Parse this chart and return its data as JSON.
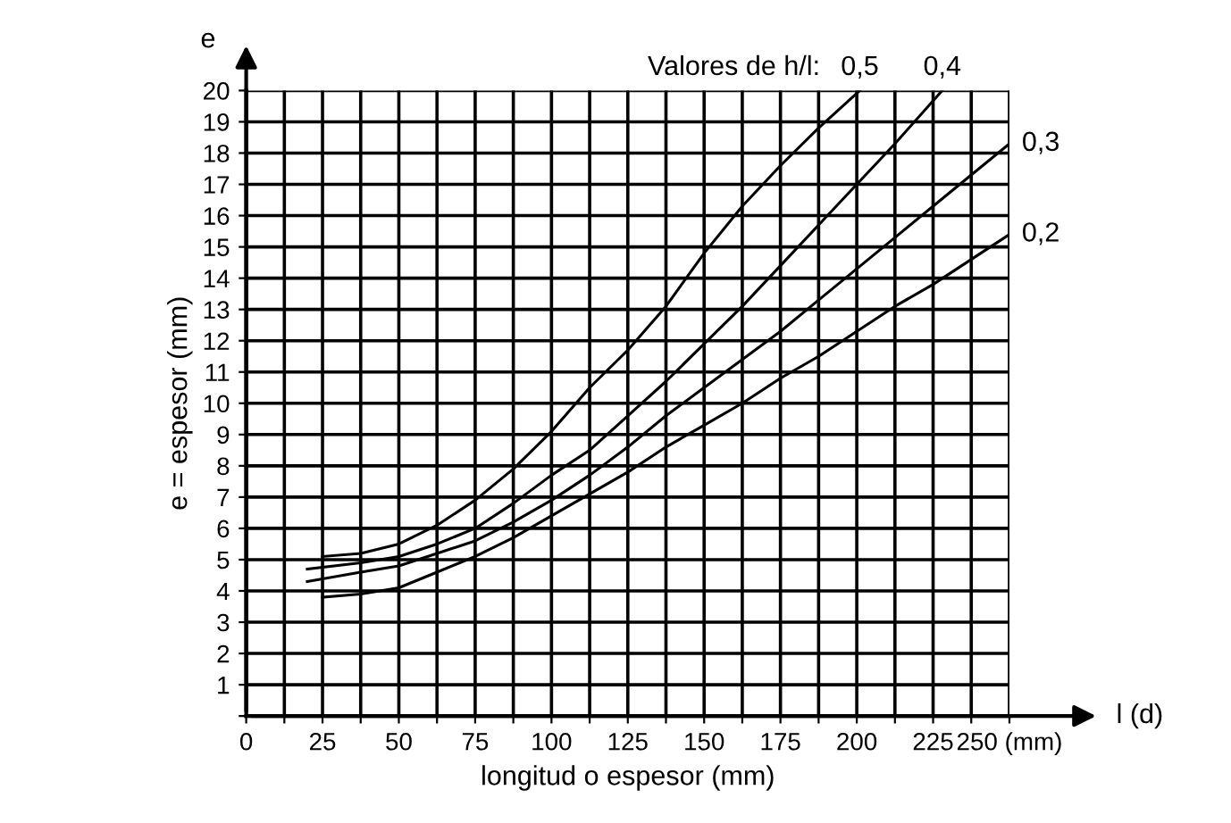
{
  "chart_data": {
    "type": "line",
    "xlabel": "longitud o espesor (mm)",
    "ylabel": "e = espesor (mm)",
    "legend_title": "Valores de h/l:",
    "annotations": [
      "e",
      "l (d)"
    ],
    "xlim": [
      0,
      250
    ],
    "ylim": [
      0,
      20
    ],
    "xticks": [
      0,
      {
        "value": 12.5,
        "label": null
      },
      25,
      {
        "value": 37.5,
        "label": null
      },
      50,
      {
        "value": 62.5,
        "label": null
      },
      75,
      {
        "value": 87.5,
        "label": null
      },
      100,
      {
        "value": 112.5,
        "label": null
      },
      125,
      {
        "value": 137.5,
        "label": null
      },
      150,
      {
        "value": 162.5,
        "label": null
      },
      175,
      {
        "value": 187.5,
        "label": null
      },
      200,
      {
        "value": 212.5,
        "label": null
      },
      225,
      {
        "value": 237.5,
        "label": null
      },
      {
        "value": 250,
        "label": "250 (mm)"
      }
    ],
    "yticks": [
      {
        "value": 0,
        "label": null
      },
      1,
      2,
      3,
      4,
      5,
      6,
      7,
      8,
      9,
      10,
      11,
      12,
      13,
      14,
      15,
      16,
      17,
      18,
      19,
      20
    ],
    "grid": true,
    "legend": false,
    "marker": "none",
    "line_style": "solid",
    "series": [
      {
        "name": "0,5",
        "color": "#000000",
        "x": [
          25,
          37.5,
          50,
          62.5,
          75,
          87.5,
          100,
          112.5,
          125,
          137.5,
          150,
          162.5,
          175,
          187.5,
          201
        ],
        "values": [
          5.1,
          5.2,
          5.5,
          6.1,
          6.9,
          7.9,
          9.1,
          10.5,
          11.7,
          13.1,
          14.8,
          16.3,
          17.6,
          18.8,
          20
        ]
      },
      {
        "name": "0,4",
        "color": "#000000",
        "x": [
          20,
          37.5,
          50,
          62.5,
          75,
          87.5,
          100,
          112.5,
          125,
          137.5,
          150,
          162.5,
          175,
          187.5,
          200,
          212.5,
          228
        ],
        "values": [
          4.7,
          4.9,
          5.1,
          5.5,
          6.0,
          6.8,
          7.7,
          8.5,
          9.6,
          10.7,
          11.9,
          13.1,
          14.4,
          15.7,
          17.0,
          18.3,
          20
        ]
      },
      {
        "name": "0,3",
        "color": "#000000",
        "x": [
          20,
          37.5,
          50,
          62.5,
          75,
          87.5,
          100,
          112.5,
          125,
          137.5,
          150,
          162.5,
          175,
          187.5,
          200,
          212.5,
          225,
          237.5,
          250
        ],
        "values": [
          4.3,
          4.6,
          4.8,
          5.2,
          5.6,
          6.2,
          6.9,
          7.7,
          8.6,
          9.6,
          10.5,
          11.4,
          12.3,
          13.3,
          14.3,
          15.3,
          16.3,
          17.3,
          18.3
        ]
      },
      {
        "name": "0,2",
        "color": "#000000",
        "x": [
          25,
          37.5,
          50,
          62.5,
          75,
          87.5,
          100,
          112.5,
          125,
          137.5,
          150,
          162.5,
          175,
          187.5,
          200,
          212.5,
          225,
          237.5,
          250
        ],
        "values": [
          3.8,
          3.9,
          4.1,
          4.6,
          5.1,
          5.7,
          6.4,
          7.1,
          7.8,
          8.6,
          9.3,
          10.0,
          10.8,
          11.5,
          12.3,
          13.1,
          13.8,
          14.6,
          15.4
        ]
      }
    ]
  }
}
